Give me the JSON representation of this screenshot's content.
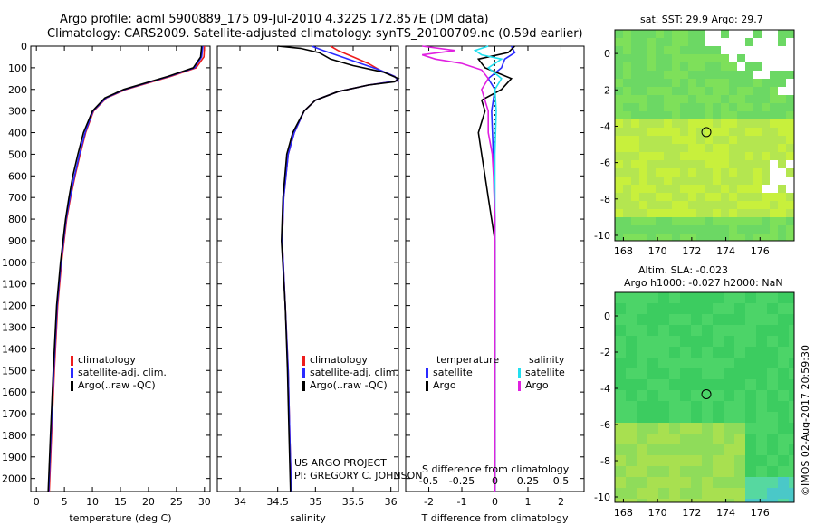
{
  "header": {
    "line1": "Argo profile: aoml 5900889_175 09-Jul-2010 4.322S 172.857E (DM data)",
    "line2": "Climatology: CARS2009. Satellite-adjusted climatology: synTS_20100709.nc (0.59d earlier)"
  },
  "colors": {
    "climatology": "#ee1c1c",
    "satellite": "#2a2aff",
    "argo": "#000000",
    "cyan": "#22e0f0",
    "magenta": "#e020e0"
  },
  "chart_data": [
    {
      "type": "line",
      "id": "temperature",
      "xlabel": "temperature (deg C)",
      "xlim": [
        -1,
        31
      ],
      "ylim": [
        2060,
        0
      ],
      "xticks": [
        0,
        5,
        10,
        15,
        20,
        25,
        30
      ],
      "yticks": [
        0,
        100,
        200,
        300,
        400,
        500,
        600,
        700,
        800,
        900,
        1000,
        1100,
        1200,
        1300,
        1400,
        1500,
        1600,
        1700,
        1800,
        1900,
        2000
      ],
      "legend": [
        "climatology",
        "satellite-adj. clim.",
        "Argo(..raw -QC)"
      ],
      "series": [
        {
          "name": "climatology",
          "depth": [
            0,
            50,
            100,
            140,
            170,
            200,
            240,
            300,
            400,
            500,
            600,
            700,
            800,
            1000,
            1200,
            1500,
            1800,
            2060
          ],
          "values": [
            30.0,
            29.9,
            28.5,
            24,
            20,
            16,
            12.5,
            10.2,
            8.8,
            7.8,
            6.9,
            6.1,
            5.4,
            4.5,
            3.8,
            3.2,
            2.7,
            2.3
          ]
        },
        {
          "name": "satellite",
          "depth": [
            0,
            50,
            100,
            140,
            170,
            200,
            240,
            300,
            400,
            500,
            600,
            700,
            800,
            1000,
            1200,
            1500,
            1800,
            2060
          ],
          "values": [
            29.7,
            29.5,
            28.2,
            23.7,
            19.7,
            15.8,
            12.4,
            10.1,
            8.7,
            7.7,
            6.8,
            6.0,
            5.3,
            4.4,
            3.7,
            3.1,
            2.6,
            2.2
          ]
        },
        {
          "name": "Argo",
          "depth": [
            0,
            50,
            100,
            140,
            170,
            200,
            240,
            300,
            400,
            500,
            600,
            700,
            800,
            1000,
            1200,
            1500,
            1800,
            2060
          ],
          "values": [
            29.5,
            29.3,
            28.0,
            23.5,
            19.5,
            15.6,
            12.2,
            10.0,
            8.4,
            7.4,
            6.5,
            5.8,
            5.2,
            4.3,
            3.6,
            3.0,
            2.5,
            2.1
          ]
        }
      ]
    },
    {
      "type": "line",
      "id": "salinity",
      "xlabel": "salinity",
      "xlim": [
        33.7,
        36.1
      ],
      "ylim": [
        2060,
        0
      ],
      "xticks": [
        34,
        34.5,
        35,
        35.5,
        36
      ],
      "legend": [
        "climatology",
        "satellite-adj. clim.",
        "Argo(..raw -QC)"
      ],
      "series": [
        {
          "name": "climatology",
          "depth": [
            0,
            20,
            50,
            80,
            110,
            140,
            160,
            180,
            210,
            250,
            300,
            400,
            500,
            700,
            900,
            1200,
            1500,
            1800,
            2060
          ],
          "values": [
            35.2,
            35.3,
            35.5,
            35.7,
            35.85,
            36.05,
            36.1,
            35.7,
            35.3,
            35.0,
            34.85,
            34.72,
            34.64,
            34.58,
            34.56,
            34.6,
            34.64,
            34.66,
            34.68
          ]
        },
        {
          "name": "satellite",
          "depth": [
            0,
            20,
            50,
            80,
            110,
            140,
            160,
            180,
            210,
            250,
            300,
            400,
            500,
            700,
            900,
            1200,
            1500,
            1800,
            2060
          ],
          "values": [
            34.95,
            35.1,
            35.35,
            35.6,
            35.85,
            36.05,
            36.1,
            35.7,
            35.3,
            35.0,
            34.85,
            34.72,
            34.64,
            34.58,
            34.56,
            34.6,
            34.64,
            34.66,
            34.68
          ]
        },
        {
          "name": "Argo",
          "depth": [
            0,
            10,
            30,
            60,
            90,
            120,
            150,
            165,
            180,
            210,
            250,
            300,
            400,
            500,
            700,
            900,
            1200,
            1500,
            1800,
            2060
          ],
          "values": [
            34.5,
            34.8,
            35.05,
            35.2,
            35.5,
            35.9,
            36.1,
            36.05,
            35.7,
            35.3,
            35.0,
            34.85,
            34.7,
            34.62,
            34.57,
            34.55,
            34.6,
            34.63,
            34.65,
            34.67
          ]
        }
      ],
      "annotations": [
        "US ARGO PROJECT",
        "PI: GREGORY C. JOHNSON"
      ]
    },
    {
      "type": "line",
      "id": "difference",
      "xlabel": "T difference from climatology",
      "top_xlabel": "S difference from climatology",
      "xlim": [
        -2.7,
        2.7
      ],
      "ylim": [
        2060,
        0
      ],
      "xticks": [
        -2,
        -1,
        0,
        1,
        2
      ],
      "top_xticks": [
        -0.5,
        -0.25,
        0,
        0.25,
        0.5
      ],
      "top_xtick_labels": [
        "-0.5",
        "-0.25",
        "0",
        "0.25",
        "0.5"
      ],
      "legend_headers": [
        "temperature",
        "salinity"
      ],
      "legend": [
        "satellite",
        "Argo",
        "satellite",
        "Argo"
      ],
      "series": [
        {
          "name": "T satellite",
          "axis": "T",
          "depth": [
            0,
            30,
            60,
            100,
            150,
            200,
            300,
            500,
            800,
            1200,
            2060
          ],
          "values": [
            0.5,
            0.6,
            0.3,
            0.2,
            -0.2,
            0.0,
            -0.1,
            -0.05,
            0.0,
            0.0,
            0.0
          ]
        },
        {
          "name": "T Argo",
          "depth": [
            0,
            30,
            60,
            100,
            150,
            200,
            250,
            300,
            400,
            500,
            600,
            700,
            800,
            900,
            1200,
            2060
          ],
          "axis": "T",
          "values": [
            0.6,
            0.4,
            -0.5,
            -0.3,
            0.5,
            0.2,
            -0.4,
            -0.3,
            -0.5,
            -0.4,
            -0.3,
            -0.2,
            -0.1,
            0.0,
            0.0,
            0.0
          ]
        },
        {
          "name": "S satellite",
          "axis": "S",
          "depth": [
            0,
            20,
            40,
            60,
            100,
            150,
            200,
            300,
            500,
            800,
            2060
          ],
          "values": [
            -0.05,
            -0.15,
            -0.1,
            0.05,
            -0.05,
            0.05,
            0.0,
            0.01,
            0.0,
            0.0,
            0.0
          ]
        },
        {
          "name": "S Argo",
          "axis": "S",
          "depth": [
            0,
            20,
            40,
            60,
            80,
            110,
            150,
            200,
            300,
            400,
            500,
            600,
            800,
            1200,
            2060
          ],
          "values": [
            -0.55,
            -0.3,
            -0.55,
            -0.45,
            -0.25,
            -0.1,
            -0.05,
            -0.1,
            -0.05,
            -0.05,
            -0.02,
            -0.01,
            0.0,
            0.0,
            0.0
          ]
        }
      ]
    },
    {
      "type": "heatmap",
      "id": "sst-map",
      "title": "sat. SST: 29.9  Argo: 29.7",
      "xlim": [
        167.5,
        178
      ],
      "ylim": [
        -10.3,
        1.3
      ],
      "xticks": [
        168,
        170,
        172,
        174,
        176
      ],
      "yticks": [
        0,
        -2,
        -4,
        -6,
        -8,
        -10
      ],
      "marker": {
        "lon": 172.857,
        "lat": -4.322
      }
    },
    {
      "type": "heatmap",
      "id": "sla-map",
      "title": "Altim. SLA: -0.023",
      "subtitle": "Argo h1000: -0.027  h2000: NaN",
      "xlim": [
        167.5,
        178
      ],
      "ylim": [
        -10.3,
        1.3
      ],
      "xticks": [
        168,
        170,
        172,
        174,
        176
      ],
      "yticks": [
        0,
        -2,
        -4,
        -6,
        -8,
        -10
      ],
      "marker": {
        "lon": 172.857,
        "lat": -4.322
      }
    }
  ],
  "footer": {
    "imos_stamp": "©IMOS 02-Aug-2017 20:59:30"
  }
}
